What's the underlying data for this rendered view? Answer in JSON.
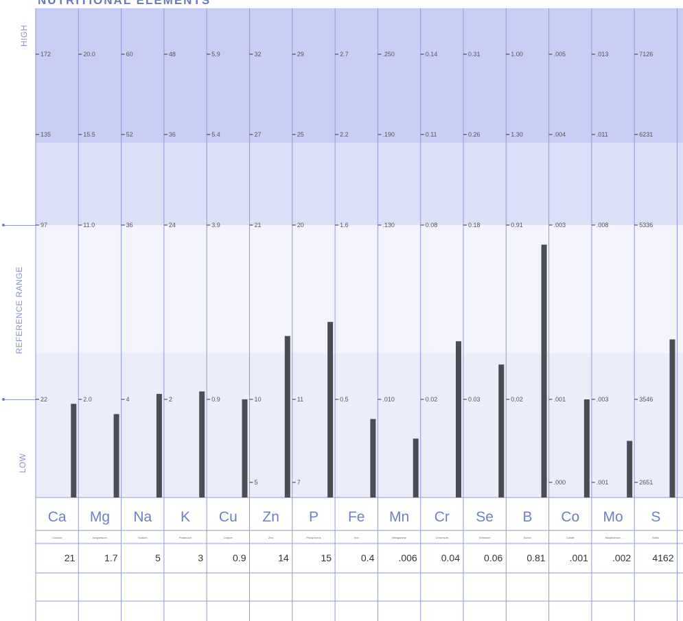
{
  "title": "NUTRITIONAL ELEMENTS",
  "zones": {
    "high": "HIGH",
    "reference": "REFERENCE RANGE",
    "low": "LOW"
  },
  "colors": {
    "high_band": "#c9cff4",
    "high_band2": "#dbdff8",
    "ref_band": "#f3f4fd",
    "ref_band2": "#ebedfa",
    "bar": "#4a4d55",
    "grid": "#8f9ad4",
    "symbol": "#6d7fc8"
  },
  "chart_data": {
    "type": "bar",
    "title": "NUTRITIONAL ELEMENTS",
    "zone_labels": [
      "HIGH",
      "REFERENCE RANGE",
      "LOW"
    ],
    "elements": [
      {
        "symbol": "Ca",
        "name": "Calcium",
        "result": "21",
        "value": 21,
        "ticks": [
          "172",
          "135",
          "97",
          "22"
        ],
        "tick_values": [
          172,
          135,
          97,
          22
        ]
      },
      {
        "symbol": "Mg",
        "name": "Magnesium",
        "result": "1.7",
        "value": 1.7,
        "ticks": [
          "20.0",
          "15.5",
          "11.0",
          "2.0"
        ],
        "tick_values": [
          20.0,
          15.5,
          11.0,
          2.0
        ]
      },
      {
        "symbol": "Na",
        "name": "Sodium",
        "result": "5",
        "value": 5,
        "ticks": [
          "60",
          "52",
          "36",
          "4"
        ],
        "tick_values": [
          60,
          52,
          36,
          4
        ]
      },
      {
        "symbol": "K",
        "name": "Potassium",
        "result": "3",
        "value": 3,
        "ticks": [
          "48",
          "36",
          "24",
          "2"
        ],
        "tick_values": [
          48,
          36,
          24,
          2
        ]
      },
      {
        "symbol": "Cu",
        "name": "Copper",
        "result": "0.9",
        "value": 0.9,
        "ticks": [
          "5.9",
          "5.4",
          "3.9",
          "0.9"
        ],
        "tick_values": [
          5.9,
          5.4,
          3.9,
          0.9
        ]
      },
      {
        "symbol": "Zn",
        "name": "Zinc",
        "result": "14",
        "value": 14,
        "ticks": [
          "32",
          "27",
          "21",
          "10",
          "5"
        ],
        "tick_values": [
          32,
          27,
          21,
          10,
          5
        ]
      },
      {
        "symbol": "P",
        "name": "Phosphorus",
        "result": "15",
        "value": 15,
        "ticks": [
          "29",
          "25",
          "20",
          "11",
          "7"
        ],
        "tick_values": [
          29,
          25,
          20,
          11,
          7
        ]
      },
      {
        "symbol": "Fe",
        "name": "Iron",
        "result": "0.4",
        "value": 0.4,
        "ticks": [
          "2.7",
          "2.2",
          "1.6",
          "0.5"
        ],
        "tick_values": [
          2.7,
          2.2,
          1.6,
          0.5
        ]
      },
      {
        "symbol": "Mn",
        "name": "Manganese",
        "result": ".006",
        "value": 0.006,
        "ticks": [
          ".250",
          ".190",
          ".130",
          ".010"
        ],
        "tick_values": [
          0.25,
          0.19,
          0.13,
          0.01
        ]
      },
      {
        "symbol": "Cr",
        "name": "Chromium",
        "result": "0.04",
        "value": 0.04,
        "ticks": [
          "0.14",
          "0.11",
          "0.08",
          "0.02"
        ],
        "tick_values": [
          0.14,
          0.11,
          0.08,
          0.02
        ]
      },
      {
        "symbol": "Se",
        "name": "Selenium",
        "result": "0.06",
        "value": 0.06,
        "ticks": [
          "0.31",
          "0.26",
          "0.18",
          "0.03"
        ],
        "tick_values": [
          0.31,
          0.26,
          0.18,
          0.03
        ]
      },
      {
        "symbol": "B",
        "name": "Boron",
        "result": "0.81",
        "value": 0.81,
        "ticks": [
          "1.00",
          "1.30",
          "0.91",
          "0.02"
        ],
        "tick_values": [
          1.0,
          1.3,
          0.91,
          0.02
        ]
      },
      {
        "symbol": "Co",
        "name": "Cobalt",
        "result": ".001",
        "value": 0.001,
        "ticks": [
          ".005",
          ".004",
          ".003",
          ".001",
          ".000"
        ],
        "tick_values": [
          0.005,
          0.004,
          0.003,
          0.001,
          0.0
        ]
      },
      {
        "symbol": "Mo",
        "name": "Molybdenum",
        "result": ".002",
        "value": 0.002,
        "ticks": [
          ".013",
          ".011",
          ".008",
          ".003",
          ".001"
        ],
        "tick_values": [
          0.013,
          0.011,
          0.008,
          0.003,
          0.001
        ]
      },
      {
        "symbol": "S",
        "name": "Sulfur",
        "result": "4162",
        "value": 4162,
        "ticks": [
          "7126",
          "6231",
          "5336",
          "3546",
          "2651"
        ],
        "tick_values": [
          7126,
          6231,
          5336,
          3546,
          2651
        ]
      }
    ]
  }
}
